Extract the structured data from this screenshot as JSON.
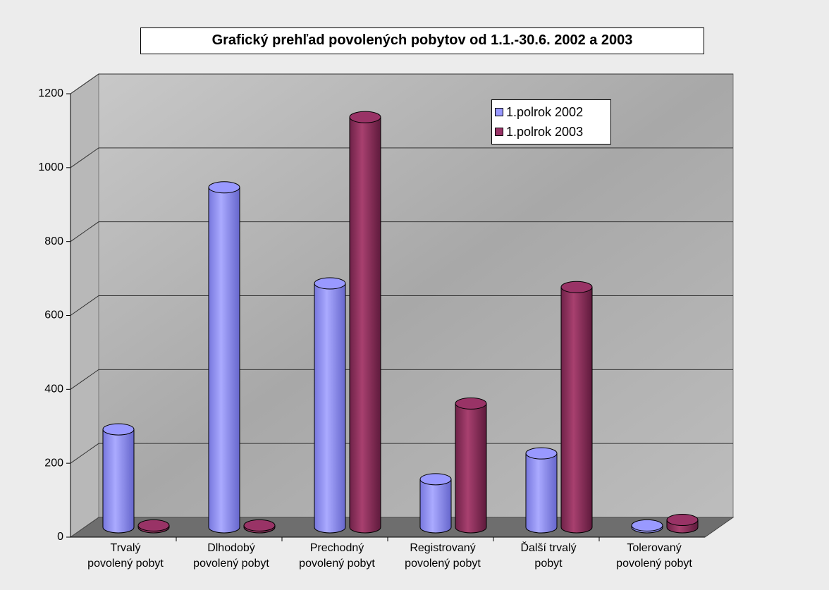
{
  "chart_data": {
    "type": "bar3d",
    "title": "Grafický prehľad povolených pobytov od 1.1.-30.6. 2002 a 2003",
    "categories": [
      "Trvalý\npovolený pobyt",
      "Dlhodobý\npovolený pobyt",
      "Prechodný\npovolený pobyt",
      "Registrovaný\npovolený pobyt",
      "Ďalší trvalý\npobyt",
      "Tolerovaný\npovolený pobyt"
    ],
    "series": [
      {
        "name": "1.polrok 2002",
        "color": "#9999ff",
        "values": [
          265,
          920,
          660,
          130,
          200,
          5
        ]
      },
      {
        "name": "1.polrok 2003",
        "color": "#993366",
        "values": [
          5,
          5,
          1110,
          335,
          650,
          20
        ]
      }
    ],
    "ylim": [
      0,
      1200
    ],
    "yticks": [
      0,
      200,
      400,
      600,
      800,
      1000,
      1200
    ],
    "grid": true
  }
}
